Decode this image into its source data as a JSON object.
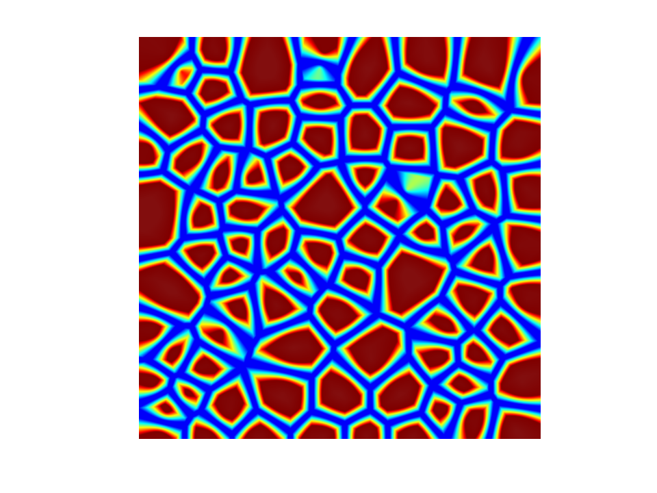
{
  "figure": {
    "colormap": "jet",
    "colors": {
      "background": "#ffffff",
      "boundary": "#0a14ff",
      "halo_inner": "#00e5ff",
      "halo_mid": "#b8ff40",
      "halo_outer": "#ffc400",
      "rim": "#ff2a00",
      "cell_edge": "#c81000",
      "cell_core": "#820e0e"
    }
  }
}
